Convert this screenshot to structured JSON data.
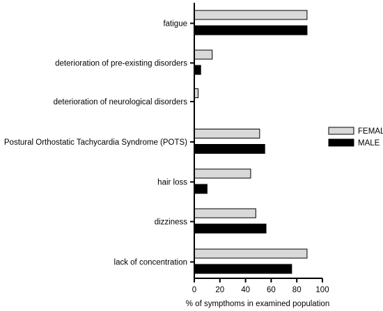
{
  "chart_data": {
    "type": "bar",
    "orientation": "horizontal",
    "categories": [
      "fatigue",
      "deterioration of pre-existing disorders",
      "deterioration of neurological disorders",
      "Postural Orthostatic Tachycardia Syndrome (POTS)",
      "hair loss",
      "dizziness",
      "lack of concentration"
    ],
    "series": [
      {
        "name": "FEMALE",
        "color": "#d9d9d9",
        "values": [
          88,
          14,
          3,
          51,
          44,
          48,
          88
        ]
      },
      {
        "name": "MALE",
        "color": "#000000",
        "values": [
          88,
          5,
          0,
          55,
          10,
          56,
          76
        ]
      }
    ],
    "xlabel": "% of sympthoms in examined population",
    "ylabel": "",
    "xlim": [
      0,
      100
    ],
    "xticks": [
      "0",
      "20",
      "40",
      "60",
      "80",
      "100"
    ],
    "grid": false,
    "legend": "right"
  }
}
